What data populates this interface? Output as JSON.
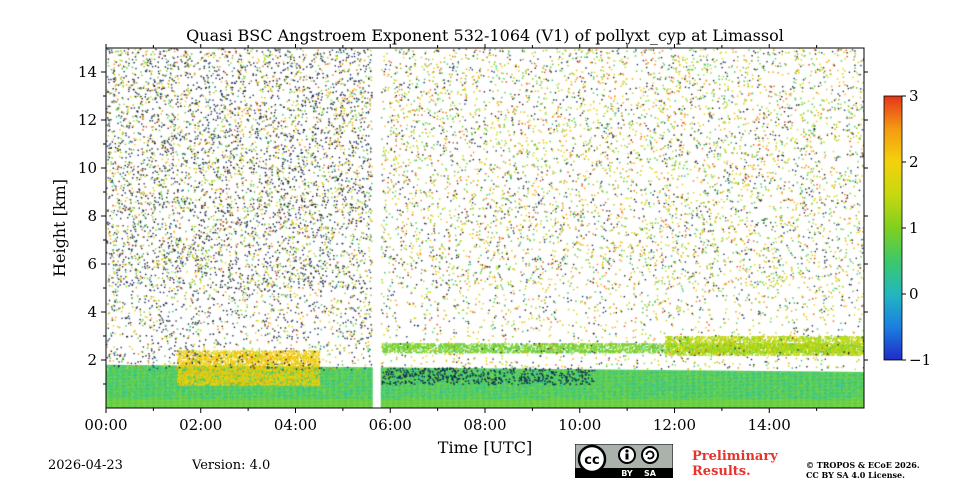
{
  "chart_data": {
    "type": "heatmap",
    "title": "Quasi BSC Angstroem Exponent 532-1064 (V1) of pollyxt_cyp at Limassol",
    "xlabel": "Time [UTC]",
    "ylabel": "Height [km]",
    "xlim": [
      0,
      16
    ],
    "ylim": [
      0,
      15
    ],
    "x_ticks": [
      0,
      2,
      4,
      6,
      8,
      10,
      12,
      14
    ],
    "x_tick_labels": [
      "00:00",
      "02:00",
      "04:00",
      "06:00",
      "08:00",
      "10:00",
      "12:00",
      "14:00"
    ],
    "y_ticks": [
      2,
      4,
      6,
      8,
      10,
      12,
      14
    ],
    "y_tick_labels": [
      "2",
      "4",
      "6",
      "8",
      "10",
      "12",
      "14"
    ],
    "colorbar": {
      "range": [
        -1,
        3
      ],
      "ticks": [
        3,
        2,
        1,
        0,
        -1
      ],
      "tick_labels": [
        "3",
        "2",
        "1",
        "0",
        "−1"
      ],
      "colormap": [
        "#1f2bc8",
        "#1b7fe0",
        "#22b7c0",
        "#3cc86a",
        "#7fd01e",
        "#c6d810",
        "#f3d20c",
        "#f59a12",
        "#e6351a"
      ]
    },
    "data_gap_hours": [
      5.6,
      5.8
    ],
    "layers": [
      {
        "name": "boundary layer",
        "t_start": 0,
        "t_end": 16,
        "base_km": 0.0,
        "top_km_start": 1.8,
        "top_km_end": 1.5,
        "dominant_value": 0.6
      },
      {
        "name": "elevated aerosol layer",
        "t_start": 5.8,
        "t_end": 16,
        "base_km": 2.3,
        "top_km": 2.7,
        "dominant_value": 0.9
      },
      {
        "name": "late upper layer",
        "t_start": 11.8,
        "t_end": 16,
        "base_km": 2.2,
        "top_km": 3.0,
        "dominant_value": 1.4
      },
      {
        "name": "enhanced exponent patch",
        "t_start": 1.5,
        "t_end": 4.5,
        "base_km": 1.0,
        "top_km": 2.4,
        "dominant_value": 2.0
      }
    ]
  },
  "footer": {
    "date": "2026-04-23",
    "version": "Version: 4.0",
    "license_badge_labels": [
      "cc",
      "BY",
      "SA"
    ],
    "preliminary": [
      "Preliminary",
      "Results."
    ],
    "copyright": [
      "© TROPOS & ECoE 2026.",
      "CC BY SA 4.0 License."
    ]
  }
}
